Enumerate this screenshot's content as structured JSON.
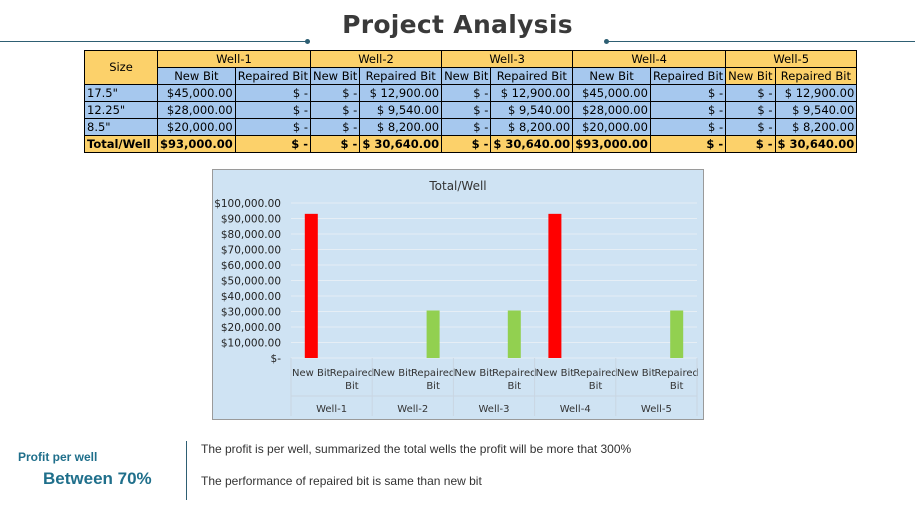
{
  "title": "Project Analysis",
  "table": {
    "size_header": "Size",
    "wells": [
      "Well-1",
      "Well-2",
      "Well-3",
      "Well-4",
      "Well-5"
    ],
    "sub_headers": [
      "New Bit",
      "Repaired Bit"
    ],
    "rows": [
      {
        "size": "17.5\"",
        "cells": [
          [
            "$45,000.00",
            "$ -"
          ],
          [
            "$ -",
            "$ 12,900.00"
          ],
          [
            "$ -",
            "$ 12,900.00"
          ],
          [
            "$45,000.00",
            "$ -"
          ],
          [
            "$ -",
            "$ 12,900.00"
          ]
        ]
      },
      {
        "size": "12.25\"",
        "cells": [
          [
            "$28,000.00",
            "$ -"
          ],
          [
            "$ -",
            "$ 9,540.00"
          ],
          [
            "$ -",
            "$ 9,540.00"
          ],
          [
            "$28,000.00",
            "$ -"
          ],
          [
            "$ -",
            "$ 9,540.00"
          ]
        ]
      },
      {
        "size": "8.5\"",
        "cells": [
          [
            "$20,000.00",
            "$ -"
          ],
          [
            "$ -",
            "$ 8,200.00"
          ],
          [
            "$ -",
            "$ 8,200.00"
          ],
          [
            "$20,000.00",
            "$ -"
          ],
          [
            "$ -",
            "$ 8,200.00"
          ]
        ]
      },
      {
        "size": "Total/Well",
        "cells": [
          [
            "$93,000.00",
            "$ -"
          ],
          [
            "$ -",
            "$ 30,640.00"
          ],
          [
            "$ -",
            "$ 30,640.00"
          ],
          [
            "$93,000.00",
            "$ -"
          ],
          [
            "$ -",
            "$ 30,640.00"
          ]
        ]
      }
    ]
  },
  "chart_data": {
    "type": "bar",
    "title": "Total/Well",
    "groups": [
      "Well-1",
      "Well-2",
      "Well-3",
      "Well-4",
      "Well-5"
    ],
    "sub_categories": [
      "New Bit",
      "Repaired Bit"
    ],
    "values": [
      [
        93000,
        0
      ],
      [
        0,
        30640
      ],
      [
        0,
        30640
      ],
      [
        93000,
        0
      ],
      [
        0,
        30640
      ]
    ],
    "bar_colors": {
      "New Bit": "#ff0000",
      "Repaired Bit": "#92d050"
    },
    "ylim": [
      0,
      100000
    ],
    "y_ticks": [
      "$-",
      "$10,000.00",
      "$20,000.00",
      "$30,000.00",
      "$40,000.00",
      "$50,000.00",
      "$60,000.00",
      "$70,000.00",
      "$80,000.00",
      "$90,000.00",
      "$100,000.00"
    ],
    "grid": true,
    "legend": "none"
  },
  "summary": {
    "label": "Profit per well",
    "value": "Between 70%",
    "notes": [
      "The profit is per well, summarized the total wells the profit will be more that 300%",
      "The performance of repaired bit is same than new bit"
    ]
  }
}
